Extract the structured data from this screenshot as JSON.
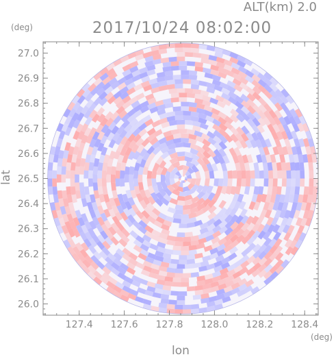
{
  "chart_data": {
    "type": "heatmap",
    "title": "2017/10/24 08:02:00",
    "altitude_label": "ALT(km) 2.0",
    "xlabel": "lon",
    "ylabel": "lat",
    "x_unit": "(deg)",
    "y_unit": "(deg)",
    "xlim": [
      127.24,
      128.46
    ],
    "ylim": [
      25.955,
      27.045
    ],
    "x_ticks": [
      "127.4",
      "127.6",
      "127.8",
      "128.0",
      "128.2",
      "128.4"
    ],
    "x_tick_values": [
      127.4,
      127.6,
      127.8,
      128.0,
      128.2,
      128.4
    ],
    "y_ticks": [
      "26.0",
      "26.1",
      "26.2",
      "26.3",
      "26.4",
      "26.5",
      "26.6",
      "26.7",
      "26.8",
      "26.9",
      "27.0"
    ],
    "y_tick_values": [
      26.0,
      26.1,
      26.2,
      26.3,
      26.4,
      26.5,
      26.6,
      26.7,
      26.8,
      26.9,
      27.0
    ],
    "radar_center": {
      "lon": 127.86,
      "lat": 26.5
    },
    "radar_range_deg": 0.6,
    "colors": {
      "positive": "#ff9a9a",
      "negative": "#9a9aff",
      "axis": "#8a8a8a",
      "text": "#8a8a8a"
    }
  }
}
